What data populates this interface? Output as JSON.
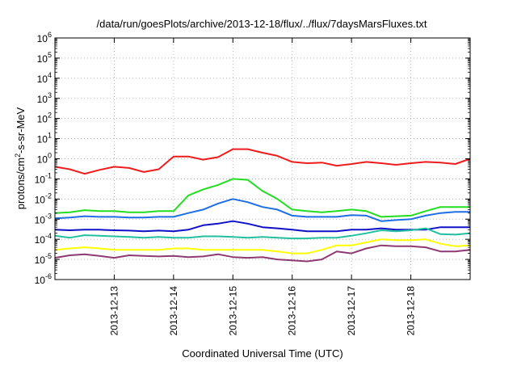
{
  "chart_data": {
    "type": "line",
    "title": "/data/run/goesPlots/archive/2013-12-18/flux/../flux/7daysMarsFluxes.txt",
    "xlabel": "Coordinated Universal Time (UTC)",
    "ylabel": {
      "base": "protons/cm",
      "sup": "2",
      "rest": "-s-sr-MeV"
    },
    "y_scale": "log",
    "ylim": [
      1e-06,
      1000000.0
    ],
    "y_ticks": [
      {
        "mantissa": "10",
        "exp": "-6",
        "value": 1e-06
      },
      {
        "mantissa": "10",
        "exp": "-5",
        "value": 1e-05
      },
      {
        "mantissa": "10",
        "exp": "-4",
        "value": 0.0001
      },
      {
        "mantissa": "10",
        "exp": "-3",
        "value": 0.001
      },
      {
        "mantissa": "10",
        "exp": "-2",
        "value": 0.01
      },
      {
        "mantissa": "10",
        "exp": "-1",
        "value": 0.1
      },
      {
        "mantissa": "10",
        "exp": "0",
        "value": 1
      },
      {
        "mantissa": "10",
        "exp": "1",
        "value": 10
      },
      {
        "mantissa": "10",
        "exp": "2",
        "value": 100
      },
      {
        "mantissa": "10",
        "exp": "3",
        "value": 1000
      },
      {
        "mantissa": "10",
        "exp": "4",
        "value": 10000
      },
      {
        "mantissa": "10",
        "exp": "5",
        "value": 100000
      },
      {
        "mantissa": "10",
        "exp": "6",
        "value": 1000000
      }
    ],
    "xlim": [
      "2013-12-12T00:00",
      "2013-12-19T00:00"
    ],
    "x_ticks": [
      "2013-12-13",
      "2013-12-14",
      "2013-12-15",
      "2013-12-16",
      "2013-12-17",
      "2013-12-18"
    ],
    "grid": true,
    "legend": "none",
    "x": [
      "2013-12-12T00:00",
      "2013-12-12T06:00",
      "2013-12-12T12:00",
      "2013-12-12T18:00",
      "2013-12-13T00:00",
      "2013-12-13T06:00",
      "2013-12-13T12:00",
      "2013-12-13T18:00",
      "2013-12-14T00:00",
      "2013-12-14T06:00",
      "2013-12-14T12:00",
      "2013-12-14T18:00",
      "2013-12-15T00:00",
      "2013-12-15T06:00",
      "2013-12-15T12:00",
      "2013-12-15T18:00",
      "2013-12-16T00:00",
      "2013-12-16T06:00",
      "2013-12-16T12:00",
      "2013-12-16T18:00",
      "2013-12-17T00:00",
      "2013-12-17T06:00",
      "2013-12-17T12:00",
      "2013-12-17T18:00",
      "2013-12-18T00:00",
      "2013-12-18T06:00",
      "2013-12-18T12:00",
      "2013-12-18T18:00",
      "2013-12-19T00:00"
    ],
    "series": [
      {
        "color": "#ee1c1c",
        "values": [
          0.4,
          0.3,
          0.18,
          0.28,
          0.4,
          0.35,
          0.22,
          0.3,
          1.3,
          1.3,
          0.9,
          1.2,
          3.0,
          3.0,
          2.0,
          1.4,
          0.7,
          0.6,
          0.65,
          0.45,
          0.55,
          0.7,
          0.6,
          0.5,
          0.6,
          0.7,
          0.65,
          0.55,
          1.0
        ]
      },
      {
        "color": "#22dd22",
        "values": [
          0.002,
          0.0022,
          0.0028,
          0.0025,
          0.0025,
          0.0022,
          0.0022,
          0.0025,
          0.0025,
          0.015,
          0.03,
          0.05,
          0.1,
          0.09,
          0.025,
          0.01,
          0.003,
          0.0025,
          0.0022,
          0.0025,
          0.003,
          0.0025,
          0.0013,
          0.0014,
          0.0015,
          0.0025,
          0.004,
          0.004,
          0.004
        ]
      },
      {
        "color": "#1e6ee6",
        "values": [
          0.0011,
          0.0012,
          0.0014,
          0.0013,
          0.0013,
          0.0012,
          0.0012,
          0.0013,
          0.0013,
          0.002,
          0.003,
          0.006,
          0.01,
          0.007,
          0.004,
          0.003,
          0.0015,
          0.0013,
          0.0013,
          0.0013,
          0.0016,
          0.0015,
          0.0008,
          0.0009,
          0.001,
          0.0015,
          0.002,
          0.0023,
          0.0023
        ]
      },
      {
        "color": "#1010c8",
        "values": [
          0.0003,
          0.00028,
          0.0003,
          0.0003,
          0.00028,
          0.00027,
          0.00025,
          0.00027,
          0.00025,
          0.0003,
          0.0005,
          0.0006,
          0.0008,
          0.0006,
          0.0004,
          0.00035,
          0.0003,
          0.00025,
          0.00025,
          0.00025,
          0.0003,
          0.0003,
          0.00035,
          0.0003,
          0.0003,
          0.0003,
          0.0004,
          0.0004,
          0.0004
        ]
      },
      {
        "color": "#22c0a0",
        "values": [
          0.00015,
          0.00012,
          0.00016,
          0.00015,
          0.00014,
          0.00013,
          0.00012,
          0.00013,
          0.00012,
          0.00012,
          0.00014,
          0.00014,
          0.00013,
          0.00012,
          0.00013,
          0.00012,
          0.00011,
          0.00011,
          0.00012,
          0.00012,
          0.00015,
          0.0002,
          0.00028,
          0.00025,
          0.00028,
          0.00035,
          0.00018,
          0.00017,
          0.0002
        ]
      },
      {
        "color": "#ffff00",
        "values": [
          3e-05,
          3.5e-05,
          4e-05,
          3.5e-05,
          3e-05,
          3e-05,
          3e-05,
          3e-05,
          3.5e-05,
          3.5e-05,
          3e-05,
          3e-05,
          3e-05,
          3e-05,
          3e-05,
          2.5e-05,
          2e-05,
          2e-05,
          3e-05,
          5e-05,
          5e-05,
          7e-05,
          0.0001,
          9e-05,
          9e-05,
          0.0001,
          6e-05,
          4.5e-05,
          5e-05
        ]
      },
      {
        "color": "#8e3a72",
        "values": [
          1.2e-05,
          1.6e-05,
          1.8e-05,
          1.5e-05,
          1.2e-05,
          1.6e-05,
          1.5e-05,
          1.4e-05,
          1.5e-05,
          1.3e-05,
          1.4e-05,
          1.8e-05,
          1.3e-05,
          1.2e-05,
          1.3e-05,
          1e-05,
          9e-06,
          8e-06,
          1e-05,
          2.5e-05,
          2e-05,
          3.5e-05,
          5e-05,
          4.5e-05,
          4.5e-05,
          4e-05,
          2.5e-05,
          2.5e-05,
          3e-05
        ]
      }
    ]
  }
}
